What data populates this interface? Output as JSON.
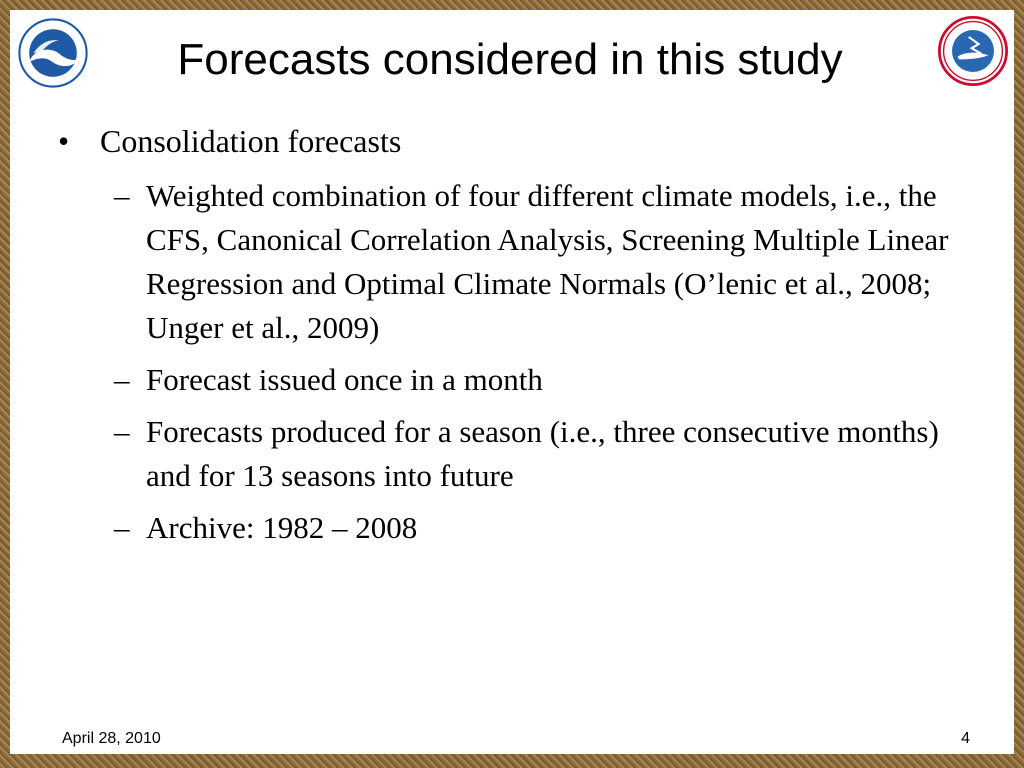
{
  "slide": {
    "title": "Forecasts considered in this study",
    "bullet": {
      "text": "Consolidation forecasts",
      "subitems": [
        "Weighted combination of four different climate models, i.e., the CFS, Canonical Correlation Analysis, Screening Multiple Linear Regression and Optimal Climate Normals (O’lenic et al., 2008; Unger et al., 2009)",
        "Forecast issued once in a month",
        "Forecasts produced for a season (i.e., three consecutive months) and for 13 seasons into future",
        "Archive: 1982 – 2008"
      ]
    },
    "footer": {
      "date": "April 28, 2010",
      "page": "4"
    },
    "logos": {
      "left": "noaa-logo",
      "right": "nws-logo",
      "left_text": "NOAA",
      "right_text": "NATIONAL WEATHER SERVICE"
    },
    "colors": {
      "frame": "#8a6a3c",
      "noaa_blue": "#1f5aa6",
      "nws_red": "#c8102e"
    }
  }
}
